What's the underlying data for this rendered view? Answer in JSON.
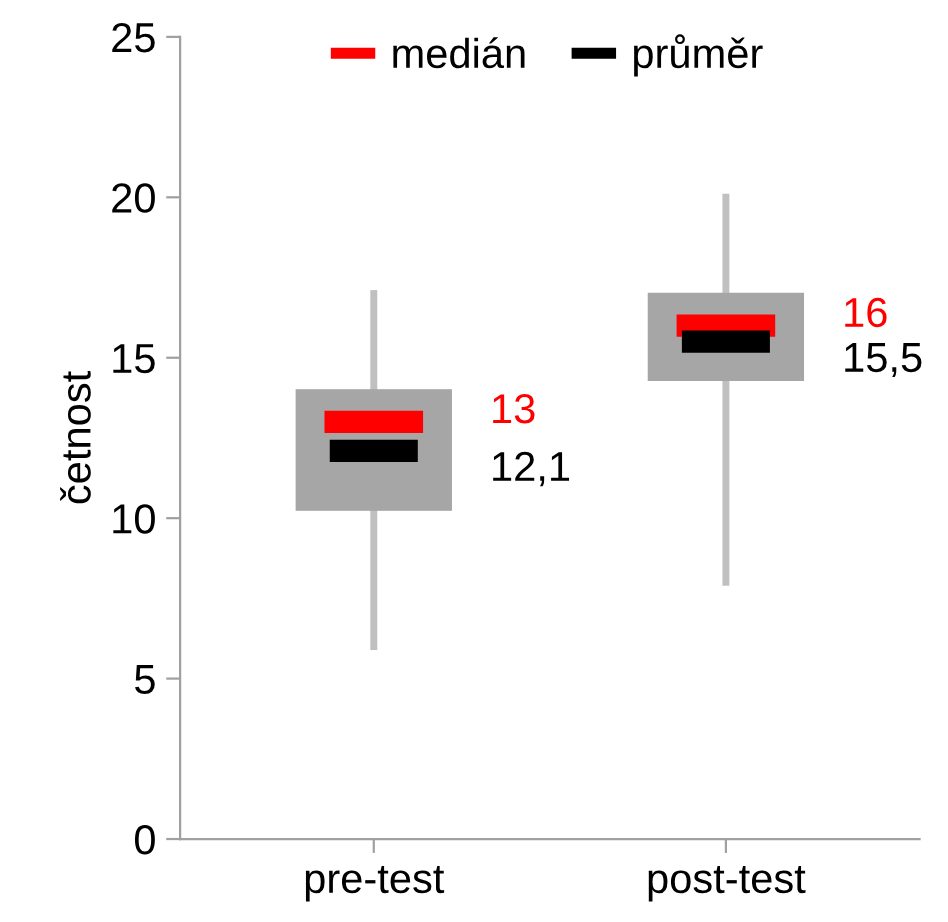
{
  "chart_data": {
    "type": "box",
    "ylabel": "četnost",
    "categories": [
      "pre-test",
      "post-test"
    ],
    "boxes": [
      {
        "low": 6,
        "q1": 10.25,
        "median": 13,
        "q3": 14,
        "high": 17,
        "mean": 12.1
      },
      {
        "low": 8,
        "q1": 14.3,
        "median": 16,
        "q3": 17,
        "high": 20,
        "mean": 15.5
      }
    ],
    "color": "#a6a6a6",
    "annotations": [
      "medián",
      "průměr",
      "13",
      "12,1",
      "16",
      "15,5"
    ],
    "ylim": [
      0,
      25
    ],
    "yticks": [
      0,
      5,
      10,
      15,
      20,
      25
    ],
    "grid": false
  }
}
